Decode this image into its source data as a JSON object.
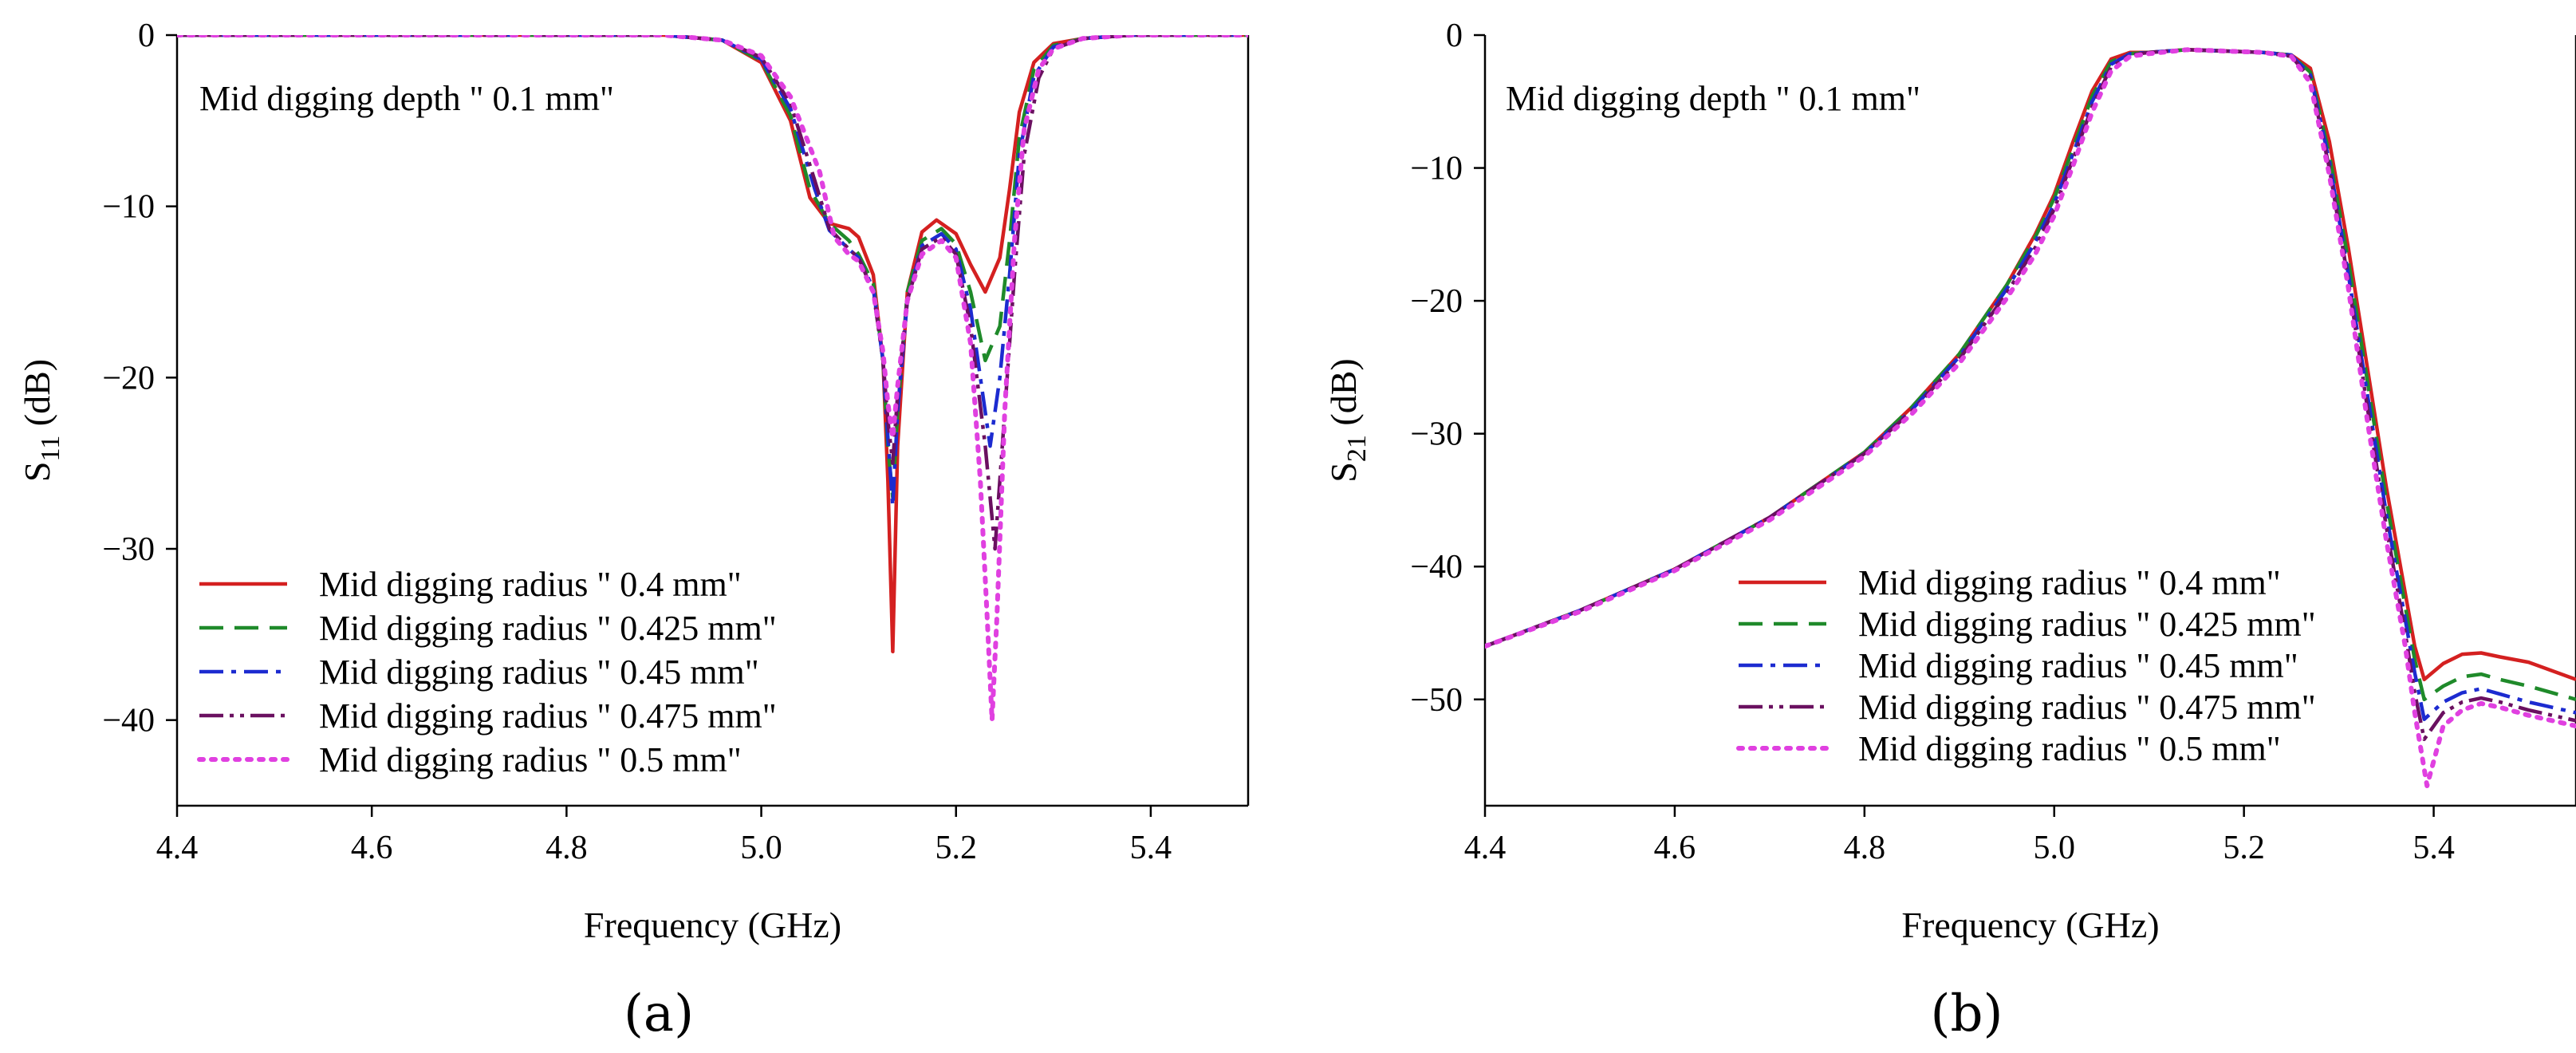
{
  "chart_data": [
    {
      "type": "line",
      "panel_label": "(a)",
      "title": "",
      "xlabel": "Frequency (GHz)",
      "ylabel": {
        "base": "S",
        "sub": "11",
        "unit": " (dB)"
      },
      "xlim": [
        4.4,
        5.5
      ],
      "ylim": [
        -45,
        0
      ],
      "xticks": [
        {
          "v": 4.4,
          "label": "4.4"
        },
        {
          "v": 4.6,
          "label": "4.6"
        },
        {
          "v": 4.8,
          "label": "4.8"
        },
        {
          "v": 5.0,
          "label": "5.0"
        },
        {
          "v": 5.2,
          "label": "5.2"
        },
        {
          "v": 5.4,
          "label": "5.4"
        }
      ],
      "yticks": [
        {
          "v": 0,
          "label": "0"
        },
        {
          "v": -10,
          "label": "−10"
        },
        {
          "v": -20,
          "label": "−20"
        },
        {
          "v": -30,
          "label": "−30"
        },
        {
          "v": -40,
          "label": "−40"
        }
      ],
      "annotation": "Mid digging  depth \" 0.1 mm\"",
      "legend_position": "bottom-left",
      "series": [
        {
          "name": "Mid digging radius \" 0.4 mm\"",
          "color": "#d42020",
          "dash": "solid",
          "x": [
            4.4,
            4.9,
            4.96,
            5.0,
            5.03,
            5.05,
            5.07,
            5.09,
            5.1,
            5.115,
            5.125,
            5.13,
            5.135,
            5.14,
            5.15,
            5.165,
            5.18,
            5.2,
            5.215,
            5.23,
            5.245,
            5.255,
            5.265,
            5.28,
            5.3,
            5.33,
            5.38,
            5.5
          ],
          "y": [
            0,
            0,
            -0.3,
            -1.6,
            -5,
            -9.5,
            -11,
            -11.3,
            -11.8,
            -14,
            -19,
            -26,
            -36,
            -24,
            -15,
            -11.5,
            -10.8,
            -11.6,
            -13.4,
            -15,
            -13,
            -9,
            -4.5,
            -1.6,
            -0.5,
            -0.2,
            0,
            0
          ]
        },
        {
          "name": "Mid digging radius \" 0.425 mm\"",
          "color": "#1f8a2a",
          "dash": "dashed",
          "x": [
            4.4,
            4.9,
            4.96,
            5.0,
            5.03,
            5.05,
            5.07,
            5.09,
            5.1,
            5.115,
            5.125,
            5.13,
            5.135,
            5.14,
            5.15,
            5.165,
            5.185,
            5.2,
            5.215,
            5.23,
            5.245,
            5.255,
            5.265,
            5.28,
            5.3,
            5.33,
            5.38,
            5.5
          ],
          "y": [
            0,
            0,
            -0.3,
            -1.5,
            -4.7,
            -9,
            -11,
            -12,
            -12.8,
            -14.5,
            -19,
            -24,
            -27,
            -22,
            -15,
            -12,
            -11.3,
            -12.2,
            -15,
            -19,
            -17,
            -12,
            -6,
            -2,
            -0.6,
            -0.2,
            0,
            0
          ]
        },
        {
          "name": "Mid digging radius \" 0.45 mm\"",
          "color": "#1c2bd0",
          "dash": "dashdot",
          "x": [
            4.4,
            4.9,
            4.96,
            5.0,
            5.03,
            5.055,
            5.07,
            5.09,
            5.1,
            5.115,
            5.125,
            5.13,
            5.135,
            5.14,
            5.15,
            5.165,
            5.185,
            5.2,
            5.215,
            5.235,
            5.245,
            5.255,
            5.265,
            5.28,
            5.3,
            5.33,
            5.38,
            5.5
          ],
          "y": [
            0,
            0,
            -0.3,
            -1.4,
            -4.3,
            -9,
            -11.4,
            -12.5,
            -13,
            -14.8,
            -19,
            -23.5,
            -27.5,
            -22,
            -15.5,
            -12.3,
            -11.6,
            -12.5,
            -16,
            -24,
            -20,
            -14,
            -7,
            -2.4,
            -0.7,
            -0.2,
            0,
            0
          ]
        },
        {
          "name": "Mid digging radius \" 0.475 mm\"",
          "color": "#6a1060",
          "dash": "dashdotdot",
          "x": [
            4.4,
            4.9,
            4.96,
            5.0,
            5.03,
            5.055,
            5.07,
            5.09,
            5.1,
            5.115,
            5.125,
            5.13,
            5.135,
            5.14,
            5.15,
            5.165,
            5.185,
            5.2,
            5.215,
            5.23,
            5.24,
            5.25,
            5.26,
            5.27,
            5.285,
            5.3,
            5.33,
            5.38,
            5.5
          ],
          "y": [
            0,
            0,
            -0.3,
            -1.3,
            -4,
            -8.5,
            -11.3,
            -12.5,
            -13,
            -15,
            -19,
            -22.5,
            -25,
            -21,
            -15.5,
            -12.5,
            -11.8,
            -12.8,
            -17,
            -24,
            -30,
            -22,
            -14,
            -7,
            -2.5,
            -0.8,
            -0.2,
            0,
            0
          ]
        },
        {
          "name": "Mid digging radius \" 0.5 mm\"",
          "color": "#e040e0",
          "dash": "dotted",
          "x": [
            4.4,
            4.9,
            4.96,
            5.0,
            5.03,
            5.06,
            5.075,
            5.09,
            5.1,
            5.115,
            5.125,
            5.13,
            5.135,
            5.14,
            5.15,
            5.165,
            5.185,
            5.2,
            5.215,
            5.225,
            5.232,
            5.237,
            5.242,
            5.25,
            5.26,
            5.27,
            5.285,
            5.3,
            5.33,
            5.38,
            5.5
          ],
          "y": [
            0,
            0,
            -0.3,
            -1.2,
            -3.6,
            -8,
            -11.8,
            -12.8,
            -13.2,
            -15,
            -18.5,
            -21.5,
            -23.5,
            -20.5,
            -15.5,
            -12.8,
            -12,
            -13,
            -18,
            -26,
            -34,
            -40,
            -34,
            -22,
            -12,
            -5.5,
            -2,
            -0.8,
            -0.2,
            0,
            0
          ]
        }
      ]
    },
    {
      "type": "line",
      "panel_label": "(b)",
      "title": "",
      "xlabel": "Frequency (GHz)",
      "ylabel": {
        "base": "S",
        "sub": "21",
        "unit": " (dB)"
      },
      "xlim": [
        4.4,
        5.55
      ],
      "ylim": [
        -58,
        0
      ],
      "xticks": [
        {
          "v": 4.4,
          "label": "4.4"
        },
        {
          "v": 4.6,
          "label": "4.6"
        },
        {
          "v": 4.8,
          "label": "4.8"
        },
        {
          "v": 5.0,
          "label": "5.0"
        },
        {
          "v": 5.2,
          "label": "5.2"
        },
        {
          "v": 5.4,
          "label": "5.4"
        }
      ],
      "yticks": [
        {
          "v": 0,
          "label": "0"
        },
        {
          "v": -10,
          "label": "−10"
        },
        {
          "v": -20,
          "label": "−20"
        },
        {
          "v": -30,
          "label": "−30"
        },
        {
          "v": -40,
          "label": "−40"
        },
        {
          "v": -50,
          "label": "−50"
        }
      ],
      "annotation": "Mid digging  depth \" 0.1 mm\"",
      "legend_position": "bottom-right",
      "series": [
        {
          "name": "Mid digging radius \" 0.4 mm\"",
          "color": "#d42020",
          "dash": "solid",
          "x": [
            4.4,
            4.5,
            4.6,
            4.7,
            4.8,
            4.85,
            4.9,
            4.95,
            4.98,
            5.0,
            5.02,
            5.04,
            5.06,
            5.08,
            5.1,
            5.14,
            5.18,
            5.22,
            5.25,
            5.27,
            5.29,
            5.31,
            5.33,
            5.35,
            5.37,
            5.38,
            5.39,
            5.41,
            5.43,
            5.45,
            5.47,
            5.5,
            5.55
          ],
          "y": [
            -46,
            -43.3,
            -40.2,
            -36.3,
            -31.4,
            -28,
            -24,
            -18.8,
            -15,
            -12,
            -8,
            -4.2,
            -1.8,
            -1.3,
            -1.3,
            -1.1,
            -1.2,
            -1.3,
            -1.5,
            -2.5,
            -8,
            -16,
            -25,
            -34,
            -42,
            -46,
            -48.5,
            -47.3,
            -46.6,
            -46.5,
            -46.8,
            -47.2,
            -48.5
          ]
        },
        {
          "name": "Mid digging radius \" 0.425 mm\"",
          "color": "#1f8a2a",
          "dash": "dashed",
          "x": [
            4.4,
            4.5,
            4.6,
            4.7,
            4.8,
            4.85,
            4.9,
            4.95,
            4.98,
            5.0,
            5.02,
            5.04,
            5.06,
            5.08,
            5.1,
            5.14,
            5.18,
            5.22,
            5.25,
            5.27,
            5.29,
            5.31,
            5.33,
            5.35,
            5.37,
            5.38,
            5.39,
            5.41,
            5.43,
            5.45,
            5.47,
            5.5,
            5.55
          ],
          "y": [
            -46,
            -43.3,
            -40.2,
            -36.3,
            -31.4,
            -28,
            -24,
            -18.8,
            -15.2,
            -12.3,
            -8.5,
            -4.6,
            -2,
            -1.4,
            -1.3,
            -1.1,
            -1.2,
            -1.3,
            -1.5,
            -2.8,
            -9,
            -17,
            -26,
            -35,
            -43,
            -47,
            -50,
            -49,
            -48.3,
            -48.1,
            -48.5,
            -49,
            -50
          ]
        },
        {
          "name": "Mid digging radius \" 0.45 mm\"",
          "color": "#1c2bd0",
          "dash": "dashdot",
          "x": [
            4.4,
            4.5,
            4.6,
            4.7,
            4.8,
            4.85,
            4.9,
            4.95,
            4.98,
            5.0,
            5.02,
            5.04,
            5.06,
            5.08,
            5.1,
            5.14,
            5.18,
            5.22,
            5.25,
            5.27,
            5.29,
            5.31,
            5.33,
            5.35,
            5.37,
            5.38,
            5.39,
            5.41,
            5.43,
            5.45,
            5.47,
            5.5,
            5.55
          ],
          "y": [
            -46,
            -43.3,
            -40.2,
            -36.3,
            -31.5,
            -28.2,
            -24.2,
            -19.1,
            -15.6,
            -12.7,
            -8.9,
            -5,
            -2.2,
            -1.4,
            -1.3,
            -1.1,
            -1.2,
            -1.3,
            -1.5,
            -3,
            -9.5,
            -18,
            -27,
            -36,
            -44,
            -48,
            -51.5,
            -50.2,
            -49.5,
            -49.2,
            -49.6,
            -50.2,
            -51
          ]
        },
        {
          "name": "Mid digging radius \" 0.475 mm\"",
          "color": "#6a1060",
          "dash": "dashdotdot",
          "x": [
            4.4,
            4.5,
            4.6,
            4.7,
            4.8,
            4.85,
            4.9,
            4.95,
            4.98,
            5.0,
            5.02,
            5.04,
            5.06,
            5.08,
            5.1,
            5.14,
            5.18,
            5.22,
            5.25,
            5.27,
            5.29,
            5.31,
            5.33,
            5.35,
            5.37,
            5.38,
            5.39,
            5.41,
            5.43,
            5.45,
            5.47,
            5.5,
            5.55
          ],
          "y": [
            -46,
            -43.3,
            -40.2,
            -36.3,
            -31.5,
            -28.3,
            -24.4,
            -19.4,
            -16,
            -13.1,
            -9.3,
            -5.4,
            -2.4,
            -1.5,
            -1.3,
            -1.1,
            -1.2,
            -1.3,
            -1.6,
            -3.3,
            -10,
            -18.5,
            -28,
            -37,
            -45,
            -49.5,
            -53,
            -51,
            -50.2,
            -49.9,
            -50.2,
            -50.8,
            -51.6
          ]
        },
        {
          "name": "Mid digging radius \" 0.5 mm\"",
          "color": "#e040e0",
          "dash": "dotted",
          "x": [
            4.4,
            4.5,
            4.6,
            4.7,
            4.8,
            4.85,
            4.9,
            4.95,
            4.98,
            5.0,
            5.02,
            5.04,
            5.06,
            5.08,
            5.1,
            5.14,
            5.18,
            5.22,
            5.25,
            5.27,
            5.29,
            5.31,
            5.33,
            5.35,
            5.37,
            5.38,
            5.393,
            5.41,
            5.43,
            5.45,
            5.47,
            5.5,
            5.55
          ],
          "y": [
            -46,
            -43.4,
            -40.3,
            -36.5,
            -31.7,
            -28.5,
            -24.7,
            -19.8,
            -16.5,
            -13.6,
            -9.8,
            -5.8,
            -2.7,
            -1.6,
            -1.4,
            -1.1,
            -1.2,
            -1.3,
            -1.6,
            -3.6,
            -10.5,
            -19,
            -29,
            -38,
            -46,
            -51,
            -56.5,
            -52,
            -50.8,
            -50.3,
            -50.6,
            -51.2,
            -52
          ]
        }
      ]
    }
  ]
}
